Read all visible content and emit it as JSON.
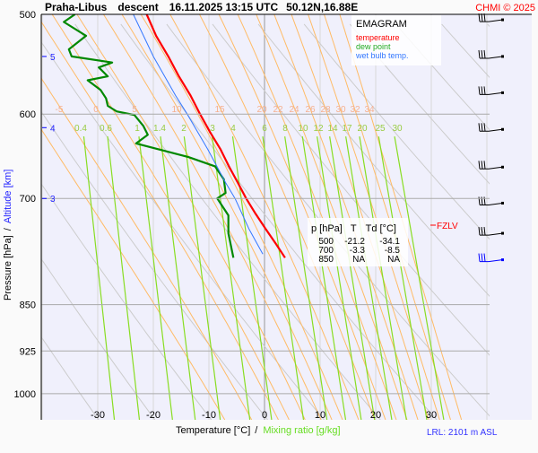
{
  "header": {
    "station": "Praha-Libus",
    "mode": "descent",
    "datetime": "16.11.2025 13:15 UTC",
    "coords": "50.12N,16.88E",
    "copyright": "CHMI © 2025"
  },
  "legend": {
    "title": "EMAGRAM",
    "temperature": "temperature",
    "dew_point": "dew point",
    "wet_bulb": "wet bulb temp."
  },
  "table": {
    "headers": [
      "p [hPa]",
      "T",
      "Td [°C]"
    ],
    "rows": [
      [
        "500",
        "-21.2",
        "-34.1"
      ],
      [
        "700",
        "-3.3",
        "-8.5"
      ],
      [
        "850",
        "NA",
        "NA"
      ]
    ]
  },
  "fzlv_label": "FZLV",
  "lrl_label": "LRL: 2101 m ASL",
  "colors": {
    "temperature": "#ff0000",
    "dew_point": "#008800",
    "wet_bulb": "#3377ff",
    "mixing": "#88dd22",
    "moist": "#ffbb66",
    "dry": "#cccccc",
    "plot_bg": "#f0f0fc"
  },
  "chart_data": {
    "type": "line",
    "title": "EMAGRAM",
    "xlabel": "Temperature [°C]",
    "xlabel2": "Mixing ratio [g/kg]",
    "xlabel_sep": "/",
    "ylabel": "Pressure [hPa]",
    "ylabel_sep": "/",
    "ylabel2": "Altitude [km]",
    "xlim": [
      -40,
      48
    ],
    "ylim": [
      1049,
      500
    ],
    "x_ticks": [
      "-30",
      "-20",
      "-10",
      "0",
      "10",
      "20",
      "30"
    ],
    "x_tick_values": [
      -30,
      -20,
      -10,
      0,
      10,
      20,
      30
    ],
    "p_ticks": [
      "500",
      "600",
      "700",
      "850",
      "925",
      "1000"
    ],
    "p_tick_values": [
      500,
      600,
      700,
      850,
      925,
      1000
    ],
    "altitude_ticks": [
      {
        "label": "5",
        "p": 540
      },
      {
        "label": "4",
        "p": 615
      },
      {
        "label": "3",
        "p": 700
      }
    ],
    "series": [
      {
        "name": "temperature",
        "points": [
          [
            500,
            -21.2
          ],
          [
            520,
            -19.5
          ],
          [
            540,
            -17.3
          ],
          [
            560,
            -15.4
          ],
          [
            580,
            -13.3
          ],
          [
            600,
            -11.6
          ],
          [
            620,
            -9.8
          ],
          [
            640,
            -7.9
          ],
          [
            660,
            -6.4
          ],
          [
            680,
            -4.8
          ],
          [
            700,
            -3.3
          ],
          [
            720,
            -1.6
          ],
          [
            740,
            0.2
          ],
          [
            760,
            2.0
          ],
          [
            780,
            3.7
          ]
        ]
      },
      {
        "name": "dew point",
        "points": [
          [
            500,
            -34.1
          ],
          [
            507,
            -36.1
          ],
          [
            520,
            -32.1
          ],
          [
            533,
            -35.2
          ],
          [
            540,
            -34.7
          ],
          [
            546,
            -27.4
          ],
          [
            551,
            -29.8
          ],
          [
            560,
            -28.2
          ],
          [
            564,
            -31.8
          ],
          [
            574,
            -29.5
          ],
          [
            583,
            -28.5
          ],
          [
            591,
            -28.2
          ],
          [
            597,
            -26.6
          ],
          [
            601,
            -23.4
          ],
          [
            613,
            -21.8
          ],
          [
            623,
            -21.0
          ],
          [
            633,
            -23.1
          ],
          [
            649,
            -13.7
          ],
          [
            660,
            -8.9
          ],
          [
            676,
            -7.3
          ],
          [
            693,
            -7.0
          ],
          [
            700,
            -8.5
          ],
          [
            722,
            -6.5
          ],
          [
            746,
            -6.5
          ],
          [
            780,
            -5.6
          ]
        ]
      },
      {
        "name": "wet bulb temp.",
        "points": [
          [
            500,
            -23.6
          ],
          [
            540,
            -20.0
          ],
          [
            580,
            -16.0
          ],
          [
            600,
            -13.9
          ],
          [
            640,
            -10.2
          ],
          [
            680,
            -7.0
          ],
          [
            700,
            -5.3
          ],
          [
            740,
            -2.8
          ],
          [
            775,
            -0.3
          ]
        ]
      }
    ],
    "moist_adiabats": {
      "labels": [
        "-5",
        "0",
        "5",
        "10",
        "15",
        "20",
        "22",
        "24",
        "26",
        "28",
        "30",
        "32",
        "34"
      ],
      "values": [
        -5,
        0,
        5,
        10,
        15,
        20,
        22,
        24,
        26,
        28,
        30,
        32,
        34
      ],
      "label_p": 610
    },
    "mixing_ratio_lines": {
      "labels": [
        "0.4",
        "0.6",
        "1",
        "1.4",
        "2",
        "3",
        "4",
        "6",
        "8",
        "10",
        "12",
        "14",
        "17",
        "20",
        "25",
        "30"
      ],
      "values": [
        0.4,
        0.6,
        1,
        1.4,
        2,
        3,
        4,
        6,
        8,
        10,
        12,
        14,
        17,
        20,
        25,
        30
      ],
      "top_p": 625
    },
    "dry_adiabats_K": [
      240,
      250,
      260,
      270,
      280,
      290,
      300,
      310,
      320,
      330,
      340,
      350,
      360,
      370,
      380,
      390,
      400
    ],
    "fzlv_p": 735,
    "wind_barbs": [
      {
        "p": 505,
        "speed_kt": 25,
        "dir": "W",
        "color": "#000000"
      },
      {
        "p": 540,
        "speed_kt": 25,
        "dir": "W",
        "color": "#000000"
      },
      {
        "p": 577,
        "speed_kt": 25,
        "dir": "W",
        "color": "#000000"
      },
      {
        "p": 617,
        "speed_kt": 25,
        "dir": "W",
        "color": "#000000"
      },
      {
        "p": 661,
        "speed_kt": 25,
        "dir": "W",
        "color": "#000000"
      },
      {
        "p": 706,
        "speed_kt": 25,
        "dir": "W",
        "color": "#000000"
      },
      {
        "p": 746,
        "speed_kt": 25,
        "dir": "W",
        "color": "#000000"
      },
      {
        "p": 783,
        "speed_kt": 25,
        "dir": "W",
        "color": "#0000ff"
      }
    ]
  }
}
